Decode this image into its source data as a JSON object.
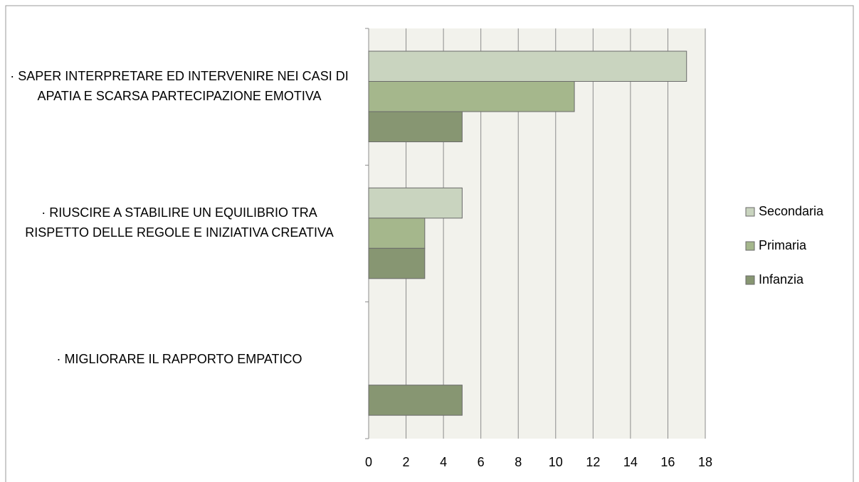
{
  "chart_data": {
    "type": "hbar",
    "categories": [
      "· SAPER INTERPRETARE ED INTERVENIRE NEI CASI DI APATIA E SCARSA PARTECIPAZIONE EMOTIVA",
      "· RIUSCIRE A STABILIRE UN EQUILIBRIO TRA RISPETTO DELLE REGOLE E INIZIATIVA CREATIVA",
      "· MIGLIORARE IL RAPPORTO EMPATICO"
    ],
    "series": [
      {
        "name": "Secondaria",
        "color": "#c9d4bf",
        "values": [
          17,
          5,
          0
        ]
      },
      {
        "name": "Primaria",
        "color": "#a5b78c",
        "values": [
          11,
          3,
          0
        ]
      },
      {
        "name": "Infanzia",
        "color": "#879672",
        "values": [
          5,
          3,
          5
        ]
      }
    ],
    "xlim": [
      0,
      18
    ],
    "xticks": [
      0,
      2,
      4,
      6,
      8,
      10,
      12,
      14,
      16,
      18
    ],
    "grid": true,
    "legend": "right"
  }
}
